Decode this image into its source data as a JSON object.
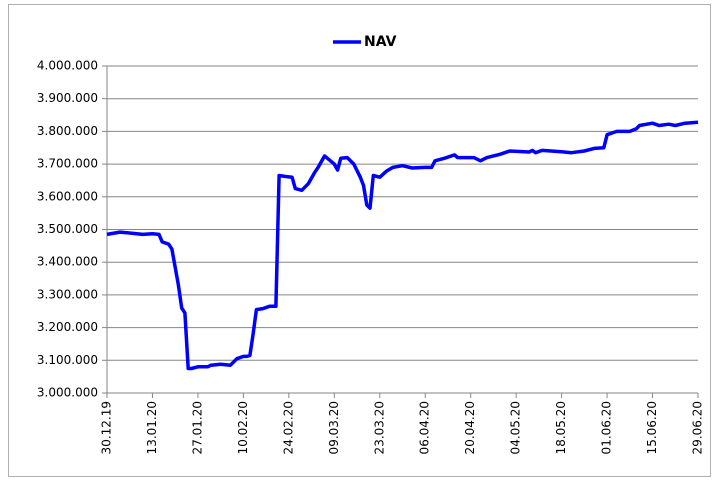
{
  "chart_data": {
    "type": "line",
    "series": [
      {
        "name": "NAV",
        "color": "#0000ff",
        "values": [
          3485000,
          3492000,
          3488000,
          3485000,
          3487000,
          3485000,
          3462000,
          3455000,
          3440000,
          3330000,
          3260000,
          3245000,
          3075000,
          3075000,
          3080000,
          3080000,
          3085000,
          3088000,
          3085000,
          3105000,
          3112000,
          3112000,
          3115000,
          3180000,
          3255000,
          3258000,
          3265000,
          3265000,
          3665000,
          3662000,
          3660000,
          3625000,
          3620000,
          3640000,
          3675000,
          3690000,
          3725000,
          3700000,
          3682000,
          3718000,
          3720000,
          3700000,
          3660000,
          3635000,
          3575000,
          3565000,
          3665000,
          3660000,
          3678000,
          3690000,
          3695000,
          3688000,
          3690000,
          3690000,
          3710000,
          3718000,
          3728000,
          3720000,
          3720000,
          3710000,
          3720000,
          3730000,
          3740000,
          3737000,
          3742000,
          3735000,
          3742000,
          3738000,
          3735000,
          3740000,
          3748000,
          3750000,
          3790000,
          3800000,
          3800000,
          3808000,
          3818000,
          3825000,
          3818000,
          3822000,
          3818000,
          3825000,
          3828000
        ]
      }
    ],
    "x": [
      "2019-12-30",
      "2020-01-03",
      "2020-01-07",
      "2020-01-10",
      "2020-01-13",
      "2020-01-15",
      "2020-01-16",
      "2020-01-18",
      "2020-01-19",
      "2020-01-21",
      "2020-01-22",
      "2020-01-23",
      "2020-01-24",
      "2020-01-25",
      "2020-01-27",
      "2020-01-30",
      "2020-01-31",
      "2020-02-03",
      "2020-02-06",
      "2020-02-08",
      "2020-02-10",
      "2020-02-11",
      "2020-02-12",
      "2020-02-13",
      "2020-02-14",
      "2020-02-16",
      "2020-02-18",
      "2020-02-20",
      "2020-02-21",
      "2020-02-23",
      "2020-02-25",
      "2020-02-26",
      "2020-02-28",
      "2020-03-01",
      "2020-03-03",
      "2020-03-04",
      "2020-03-06",
      "2020-03-09",
      "2020-03-10",
      "2020-03-11",
      "2020-03-13",
      "2020-03-15",
      "2020-03-17",
      "2020-03-18",
      "2020-03-19",
      "2020-03-20",
      "2020-03-21",
      "2020-03-23",
      "2020-03-25",
      "2020-03-27",
      "2020-03-30",
      "2020-04-02",
      "2020-04-06",
      "2020-04-08",
      "2020-04-09",
      "2020-04-12",
      "2020-04-15",
      "2020-04-16",
      "2020-04-21",
      "2020-04-23",
      "2020-04-25",
      "2020-04-29",
      "2020-05-02",
      "2020-05-08",
      "2020-05-09",
      "2020-05-10",
      "2020-05-12",
      "2020-05-18",
      "2020-05-21",
      "2020-05-25",
      "2020-05-28",
      "2020-05-31",
      "2020-06-01",
      "2020-06-04",
      "2020-06-08",
      "2020-06-10",
      "2020-06-11",
      "2020-06-15",
      "2020-06-17",
      "2020-06-20",
      "2020-06-22",
      "2020-06-25",
      "2020-06-29"
    ],
    "xlim": [
      "2019-12-30",
      "2020-06-29"
    ],
    "xticks": [
      {
        "value": "2019-12-30",
        "label": "30.12.19"
      },
      {
        "value": "2020-01-13",
        "label": "13.01.20"
      },
      {
        "value": "2020-01-27",
        "label": "27.01.20"
      },
      {
        "value": "2020-02-10",
        "label": "10.02.20"
      },
      {
        "value": "2020-02-24",
        "label": "24.02.20"
      },
      {
        "value": "2020-03-09",
        "label": "09.03.20"
      },
      {
        "value": "2020-03-23",
        "label": "23.03.20"
      },
      {
        "value": "2020-04-06",
        "label": "06.04.20"
      },
      {
        "value": "2020-04-20",
        "label": "20.04.20"
      },
      {
        "value": "2020-05-04",
        "label": "04.05.20"
      },
      {
        "value": "2020-05-18",
        "label": "18.05.20"
      },
      {
        "value": "2020-06-01",
        "label": "01.06.20"
      },
      {
        "value": "2020-06-15",
        "label": "15.06.20"
      },
      {
        "value": "2020-06-29",
        "label": "29.06.20"
      }
    ],
    "ylim": [
      3000000,
      4000000
    ],
    "yticks": [
      {
        "value": 3000000,
        "label": "3.000.000"
      },
      {
        "value": 3100000,
        "label": "3.100.000"
      },
      {
        "value": 3200000,
        "label": "3.200.000"
      },
      {
        "value": 3300000,
        "label": "3.300.000"
      },
      {
        "value": 3400000,
        "label": "3.400.000"
      },
      {
        "value": 3500000,
        "label": "3.500.000"
      },
      {
        "value": 3600000,
        "label": "3.600.000"
      },
      {
        "value": 3700000,
        "label": "3.700.000"
      },
      {
        "value": 3800000,
        "label": "3.800.000"
      },
      {
        "value": 3900000,
        "label": "3.900.000"
      },
      {
        "value": 4000000,
        "label": "4.000.000"
      }
    ],
    "grid": true,
    "legend": "top"
  }
}
